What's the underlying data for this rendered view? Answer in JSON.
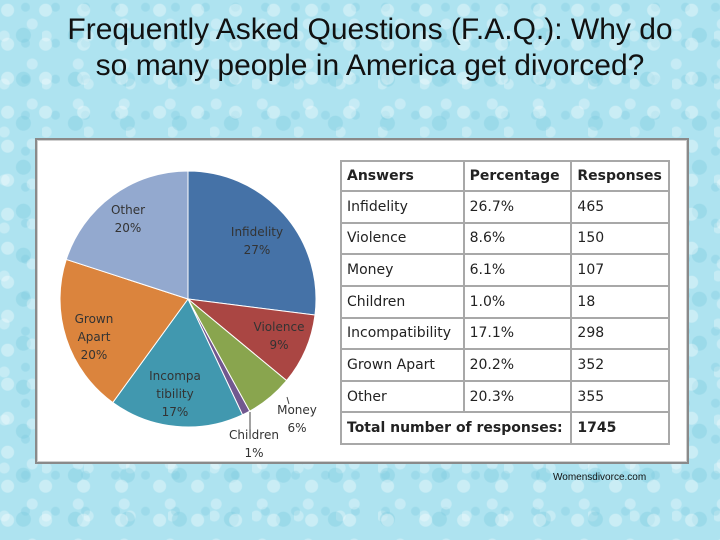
{
  "title": "Frequently Asked Questions (F.A.Q.): Why do so many people in America get divorced?",
  "source": "Womensdivorce.com",
  "chart_data": {
    "type": "pie",
    "slices": [
      {
        "label_lines": [
          "Infidelity",
          "27%"
        ],
        "value": 27,
        "color": "#4572a7"
      },
      {
        "label_lines": [
          "Violence",
          "9%"
        ],
        "value": 9,
        "color": "#aa4643"
      },
      {
        "label_lines": [
          "Money",
          "6%"
        ],
        "value": 6,
        "color": "#89a54e"
      },
      {
        "label_lines": [
          "Children",
          "1%"
        ],
        "value": 1,
        "color": "#71588f"
      },
      {
        "label_lines": [
          "Incompa",
          "tibility",
          "17%"
        ],
        "value": 17,
        "color": "#4198af"
      },
      {
        "label_lines": [
          "Grown",
          "Apart",
          "20%"
        ],
        "value": 20,
        "color": "#db843d"
      },
      {
        "label_lines": [
          "Other",
          "20%"
        ],
        "value": 20,
        "color": "#93a9cf"
      }
    ]
  },
  "table": {
    "headers": [
      "Answers",
      "Percentage",
      "Responses"
    ],
    "rows": [
      [
        "Infidelity",
        "26.7%",
        "465"
      ],
      [
        "Violence",
        "8.6%",
        "150"
      ],
      [
        "Money",
        "6.1%",
        "107"
      ],
      [
        "Children",
        "1.0%",
        "18"
      ],
      [
        "Incompatibility",
        "17.1%",
        "298"
      ],
      [
        "Grown Apart",
        "20.2%",
        "352"
      ],
      [
        "Other",
        "20.3%",
        "355"
      ]
    ],
    "total_label": "Total number of responses:",
    "total_value": "1745"
  }
}
